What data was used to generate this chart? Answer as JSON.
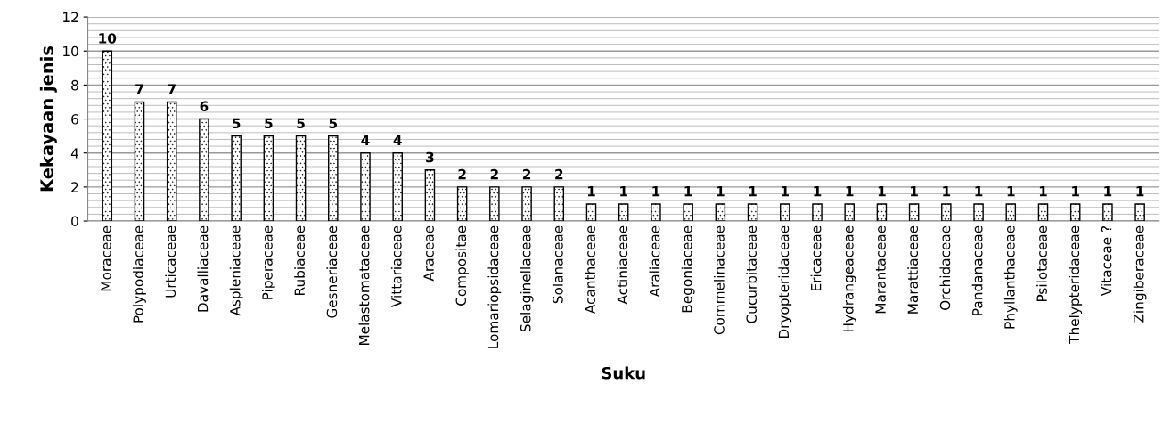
{
  "chart_data": {
    "type": "bar",
    "xlabel": "Suku",
    "ylabel": "Kekayaan jenis",
    "categories": [
      "Moraceae",
      "Polypodiaceae",
      "Urticaceae",
      "Davalliaceae",
      "Aspleniaceae",
      "Piperaceae",
      "Rubiaceae",
      "Gesneriaceae",
      "Melastomataceae",
      "Vittariaceae",
      "Araceae",
      "Compositae",
      "Lomariopsidaceae",
      "Selaginellaceae",
      "Solanaceae",
      "Acanthaceae",
      "Actiniaceae",
      "Araliaceae",
      "Begoniaceae",
      "Commelinaceae",
      "Cucurbitaceae",
      "Dryopteridaceae",
      "Ericaceae",
      "Hydrangeaceae",
      "Marantaceae",
      "Marattiaceae",
      "Orchidaceae",
      "Pandanaceae",
      "Phyllanthaceae",
      "Psilotaceae",
      "Thelypteridaceae",
      "Vitaceae ?",
      "Zingiberaceae"
    ],
    "values": [
      10,
      7,
      7,
      6,
      5,
      5,
      5,
      5,
      4,
      4,
      3,
      2,
      2,
      2,
      2,
      1,
      1,
      1,
      1,
      1,
      1,
      1,
      1,
      1,
      1,
      1,
      1,
      1,
      1,
      1,
      1,
      1,
      1
    ],
    "color": "#000000",
    "ylim": [
      0,
      12
    ],
    "yticks": [
      0,
      2,
      4,
      6,
      8,
      10,
      12
    ],
    "grid": "y",
    "data_labels": true
  }
}
